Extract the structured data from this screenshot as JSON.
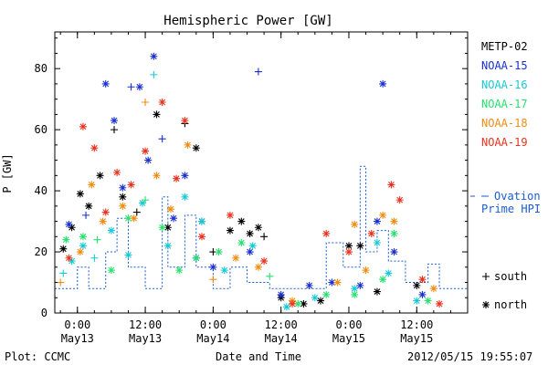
{
  "chart_data": {
    "type": "scatter",
    "title": "Hemispheric Power [GW]",
    "xlabel": "Date and Time",
    "ylabel": "P [GW]",
    "ylim": [
      0,
      92
    ],
    "xlim": [
      "2012-05-12 20:00",
      "2012-05-15 21:00"
    ],
    "yticks": [
      0,
      20,
      40,
      60,
      80
    ],
    "xtick_labels": [
      {
        "t": "2012-05-13 00:00",
        "line1": "0:00",
        "line2": "May13"
      },
      {
        "t": "2012-05-13 12:00",
        "line1": "12:00",
        "line2": "May13"
      },
      {
        "t": "2012-05-14 00:00",
        "line1": "0:00",
        "line2": "May14"
      },
      {
        "t": "2012-05-14 12:00",
        "line1": "12:00",
        "line2": "May14"
      },
      {
        "t": "2012-05-15 00:00",
        "line1": "0:00",
        "line2": "May15"
      },
      {
        "t": "2012-05-15 12:00",
        "line1": "12:00",
        "line2": "May15"
      }
    ],
    "grid": false,
    "legend_position": "right",
    "marker_legend": [
      {
        "symbol": "+",
        "label": "south"
      },
      {
        "symbol": "*",
        "label": "north"
      }
    ],
    "series": [
      {
        "name": "METP-02",
        "color": "#000000",
        "points": [
          {
            "t": "2012-05-12 21:30",
            "y": 21,
            "hemi": "north"
          },
          {
            "t": "2012-05-12 23:00",
            "y": 28,
            "hemi": "north"
          },
          {
            "t": "2012-05-13 00:30",
            "y": 39,
            "hemi": "north"
          },
          {
            "t": "2012-05-13 02:00",
            "y": 35,
            "hemi": "north"
          },
          {
            "t": "2012-05-13 04:00",
            "y": 45,
            "hemi": "north"
          },
          {
            "t": "2012-05-13 06:30",
            "y": 60,
            "hemi": "south"
          },
          {
            "t": "2012-05-13 08:00",
            "y": 38,
            "hemi": "north"
          },
          {
            "t": "2012-05-13 10:30",
            "y": 33,
            "hemi": "south"
          },
          {
            "t": "2012-05-13 14:00",
            "y": 65,
            "hemi": "north"
          },
          {
            "t": "2012-05-13 16:00",
            "y": 28,
            "hemi": "north"
          },
          {
            "t": "2012-05-13 19:00",
            "y": 62,
            "hemi": "south"
          },
          {
            "t": "2012-05-13 21:00",
            "y": 54,
            "hemi": "north"
          },
          {
            "t": "2012-05-13 22:00",
            "y": 30,
            "hemi": "north"
          },
          {
            "t": "2012-05-14 00:00",
            "y": 20,
            "hemi": "south"
          },
          {
            "t": "2012-05-14 03:00",
            "y": 27,
            "hemi": "north"
          },
          {
            "t": "2012-05-14 05:00",
            "y": 30,
            "hemi": "north"
          },
          {
            "t": "2012-05-14 06:30",
            "y": 26,
            "hemi": "north"
          },
          {
            "t": "2012-05-14 08:00",
            "y": 28,
            "hemi": "north"
          },
          {
            "t": "2012-05-14 09:00",
            "y": 25,
            "hemi": "south"
          },
          {
            "t": "2012-05-14 12:00",
            "y": 5,
            "hemi": "north"
          },
          {
            "t": "2012-05-14 16:00",
            "y": 3,
            "hemi": "north"
          },
          {
            "t": "2012-05-14 19:00",
            "y": 4,
            "hemi": "north"
          },
          {
            "t": "2012-05-15 00:00",
            "y": 22,
            "hemi": "north"
          },
          {
            "t": "2012-05-15 02:00",
            "y": 22,
            "hemi": "north"
          },
          {
            "t": "2012-05-15 05:00",
            "y": 7,
            "hemi": "north"
          },
          {
            "t": "2012-05-15 12:00",
            "y": 9,
            "hemi": "north"
          }
        ]
      },
      {
        "name": "NOAA-15",
        "color": "#1a2fcf",
        "points": [
          {
            "t": "2012-05-12 22:30",
            "y": 29,
            "hemi": "north"
          },
          {
            "t": "2012-05-13 01:30",
            "y": 32,
            "hemi": "south"
          },
          {
            "t": "2012-05-13 05:00",
            "y": 75,
            "hemi": "north"
          },
          {
            "t": "2012-05-13 06:30",
            "y": 63,
            "hemi": "north"
          },
          {
            "t": "2012-05-13 08:00",
            "y": 41,
            "hemi": "north"
          },
          {
            "t": "2012-05-13 09:30",
            "y": 74,
            "hemi": "south"
          },
          {
            "t": "2012-05-13 11:00",
            "y": 74,
            "hemi": "north"
          },
          {
            "t": "2012-05-13 12:30",
            "y": 50,
            "hemi": "north"
          },
          {
            "t": "2012-05-13 13:30",
            "y": 84,
            "hemi": "north"
          },
          {
            "t": "2012-05-13 15:00",
            "y": 57,
            "hemi": "south"
          },
          {
            "t": "2012-05-13 17:00",
            "y": 31,
            "hemi": "north"
          },
          {
            "t": "2012-05-13 19:00",
            "y": 45,
            "hemi": "north"
          },
          {
            "t": "2012-05-13 21:00",
            "y": 18,
            "hemi": "north"
          },
          {
            "t": "2012-05-14 00:00",
            "y": 15,
            "hemi": "north"
          },
          {
            "t": "2012-05-14 06:30",
            "y": 20,
            "hemi": "north"
          },
          {
            "t": "2012-05-14 08:00",
            "y": 79,
            "hemi": "south"
          },
          {
            "t": "2012-05-14 12:00",
            "y": 6,
            "hemi": "north"
          },
          {
            "t": "2012-05-14 17:00",
            "y": 9,
            "hemi": "north"
          },
          {
            "t": "2012-05-14 21:00",
            "y": 10,
            "hemi": "north"
          },
          {
            "t": "2012-05-15 02:00",
            "y": 9,
            "hemi": "north"
          },
          {
            "t": "2012-05-15 05:00",
            "y": 30,
            "hemi": "north"
          },
          {
            "t": "2012-05-15 06:00",
            "y": 75,
            "hemi": "north"
          },
          {
            "t": "2012-05-15 08:00",
            "y": 20,
            "hemi": "north"
          },
          {
            "t": "2012-05-15 13:00",
            "y": 6,
            "hemi": "north"
          }
        ]
      },
      {
        "name": "NOAA-16",
        "color": "#17c9d6",
        "points": [
          {
            "t": "2012-05-12 21:30",
            "y": 13,
            "hemi": "south"
          },
          {
            "t": "2012-05-12 23:00",
            "y": 17,
            "hemi": "north"
          },
          {
            "t": "2012-05-13 01:00",
            "y": 22,
            "hemi": "north"
          },
          {
            "t": "2012-05-13 03:00",
            "y": 18,
            "hemi": "south"
          },
          {
            "t": "2012-05-13 06:00",
            "y": 27,
            "hemi": "north"
          },
          {
            "t": "2012-05-13 09:00",
            "y": 19,
            "hemi": "north"
          },
          {
            "t": "2012-05-13 11:30",
            "y": 36,
            "hemi": "north"
          },
          {
            "t": "2012-05-13 13:30",
            "y": 78,
            "hemi": "south"
          },
          {
            "t": "2012-05-13 16:00",
            "y": 22,
            "hemi": "north"
          },
          {
            "t": "2012-05-13 19:00",
            "y": 38,
            "hemi": "north"
          },
          {
            "t": "2012-05-13 22:00",
            "y": 30,
            "hemi": "north"
          },
          {
            "t": "2012-05-14 02:00",
            "y": 14,
            "hemi": "north"
          },
          {
            "t": "2012-05-14 07:00",
            "y": 22,
            "hemi": "north"
          },
          {
            "t": "2012-05-14 13:00",
            "y": 2,
            "hemi": "north"
          },
          {
            "t": "2012-05-14 18:00",
            "y": 5,
            "hemi": "north"
          },
          {
            "t": "2012-05-15 01:00",
            "y": 8,
            "hemi": "north"
          },
          {
            "t": "2012-05-15 05:00",
            "y": 23,
            "hemi": "north"
          },
          {
            "t": "2012-05-15 07:00",
            "y": 13,
            "hemi": "north"
          },
          {
            "t": "2012-05-15 12:00",
            "y": 4,
            "hemi": "north"
          }
        ]
      },
      {
        "name": "NOAA-17",
        "color": "#27e06e",
        "points": [
          {
            "t": "2012-05-12 22:00",
            "y": 24,
            "hemi": "north"
          },
          {
            "t": "2012-05-13 01:00",
            "y": 25,
            "hemi": "north"
          },
          {
            "t": "2012-05-13 03:30",
            "y": 24,
            "hemi": "south"
          },
          {
            "t": "2012-05-13 06:00",
            "y": 14,
            "hemi": "north"
          },
          {
            "t": "2012-05-13 09:00",
            "y": 31,
            "hemi": "north"
          },
          {
            "t": "2012-05-13 12:00",
            "y": 37,
            "hemi": "south"
          },
          {
            "t": "2012-05-13 15:00",
            "y": 28,
            "hemi": "north"
          },
          {
            "t": "2012-05-13 18:00",
            "y": 14,
            "hemi": "north"
          },
          {
            "t": "2012-05-13 21:00",
            "y": 18,
            "hemi": "north"
          },
          {
            "t": "2012-05-14 01:00",
            "y": 20,
            "hemi": "north"
          },
          {
            "t": "2012-05-14 05:00",
            "y": 23,
            "hemi": "north"
          },
          {
            "t": "2012-05-14 10:00",
            "y": 12,
            "hemi": "south"
          },
          {
            "t": "2012-05-14 15:00",
            "y": 3,
            "hemi": "north"
          },
          {
            "t": "2012-05-14 20:00",
            "y": 6,
            "hemi": "north"
          },
          {
            "t": "2012-05-15 01:00",
            "y": 6,
            "hemi": "north"
          },
          {
            "t": "2012-05-15 06:00",
            "y": 11,
            "hemi": "north"
          },
          {
            "t": "2012-05-15 08:00",
            "y": 26,
            "hemi": "north"
          },
          {
            "t": "2012-05-15 14:00",
            "y": 4,
            "hemi": "north"
          }
        ]
      },
      {
        "name": "NOAA-18",
        "color": "#f08c12",
        "points": [
          {
            "t": "2012-05-12 21:00",
            "y": 10,
            "hemi": "south"
          },
          {
            "t": "2012-05-13 00:30",
            "y": 20,
            "hemi": "north"
          },
          {
            "t": "2012-05-13 02:30",
            "y": 42,
            "hemi": "north"
          },
          {
            "t": "2012-05-13 04:30",
            "y": 30,
            "hemi": "north"
          },
          {
            "t": "2012-05-13 08:00",
            "y": 35,
            "hemi": "north"
          },
          {
            "t": "2012-05-13 10:00",
            "y": 31,
            "hemi": "north"
          },
          {
            "t": "2012-05-13 12:00",
            "y": 69,
            "hemi": "south"
          },
          {
            "t": "2012-05-13 14:00",
            "y": 45,
            "hemi": "north"
          },
          {
            "t": "2012-05-13 16:30",
            "y": 34,
            "hemi": "north"
          },
          {
            "t": "2012-05-13 19:30",
            "y": 55,
            "hemi": "north"
          },
          {
            "t": "2012-05-14 00:00",
            "y": 11,
            "hemi": "south"
          },
          {
            "t": "2012-05-14 04:00",
            "y": 18,
            "hemi": "north"
          },
          {
            "t": "2012-05-14 08:00",
            "y": 15,
            "hemi": "north"
          },
          {
            "t": "2012-05-14 14:00",
            "y": 4,
            "hemi": "north"
          },
          {
            "t": "2012-05-14 22:00",
            "y": 10,
            "hemi": "north"
          },
          {
            "t": "2012-05-15 01:00",
            "y": 29,
            "hemi": "north"
          },
          {
            "t": "2012-05-15 03:00",
            "y": 14,
            "hemi": "north"
          },
          {
            "t": "2012-05-15 06:00",
            "y": 32,
            "hemi": "north"
          },
          {
            "t": "2012-05-15 08:00",
            "y": 30,
            "hemi": "north"
          },
          {
            "t": "2012-05-15 15:00",
            "y": 8,
            "hemi": "north"
          }
        ]
      },
      {
        "name": "NOAA-19",
        "color": "#e8321e",
        "points": [
          {
            "t": "2012-05-12 22:30",
            "y": 18,
            "hemi": "north"
          },
          {
            "t": "2012-05-13 01:00",
            "y": 61,
            "hemi": "north"
          },
          {
            "t": "2012-05-13 03:00",
            "y": 54,
            "hemi": "north"
          },
          {
            "t": "2012-05-13 05:00",
            "y": 33,
            "hemi": "north"
          },
          {
            "t": "2012-05-13 07:00",
            "y": 46,
            "hemi": "north"
          },
          {
            "t": "2012-05-13 09:30",
            "y": 42,
            "hemi": "north"
          },
          {
            "t": "2012-05-13 12:00",
            "y": 53,
            "hemi": "north"
          },
          {
            "t": "2012-05-13 15:00",
            "y": 69,
            "hemi": "north"
          },
          {
            "t": "2012-05-13 17:30",
            "y": 44,
            "hemi": "north"
          },
          {
            "t": "2012-05-13 19:00",
            "y": 63,
            "hemi": "north"
          },
          {
            "t": "2012-05-13 22:00",
            "y": 25,
            "hemi": "north"
          },
          {
            "t": "2012-05-14 03:00",
            "y": 32,
            "hemi": "north"
          },
          {
            "t": "2012-05-14 09:00",
            "y": 17,
            "hemi": "north"
          },
          {
            "t": "2012-05-14 14:00",
            "y": 3,
            "hemi": "north"
          },
          {
            "t": "2012-05-14 20:00",
            "y": 26,
            "hemi": "north"
          },
          {
            "t": "2012-05-15 00:00",
            "y": 20,
            "hemi": "north"
          },
          {
            "t": "2012-05-15 04:00",
            "y": 26,
            "hemi": "north"
          },
          {
            "t": "2012-05-15 07:30",
            "y": 42,
            "hemi": "north"
          },
          {
            "t": "2012-05-15 09:00",
            "y": 37,
            "hemi": "north"
          },
          {
            "t": "2012-05-15 13:00",
            "y": 11,
            "hemi": "north"
          },
          {
            "t": "2012-05-15 16:00",
            "y": 3,
            "hemi": "north"
          }
        ]
      }
    ],
    "ovation": {
      "name": "Ovation Prime HPI",
      "color": "#1a5ccf",
      "style": "dashed-step",
      "steps": [
        {
          "t": "2012-05-12 20:00",
          "y": 8
        },
        {
          "t": "2012-05-13 00:00",
          "y": 15
        },
        {
          "t": "2012-05-13 02:00",
          "y": 8
        },
        {
          "t": "2012-05-13 05:00",
          "y": 20
        },
        {
          "t": "2012-05-13 07:00",
          "y": 31
        },
        {
          "t": "2012-05-13 09:00",
          "y": 15
        },
        {
          "t": "2012-05-13 12:00",
          "y": 8
        },
        {
          "t": "2012-05-13 15:00",
          "y": 38
        },
        {
          "t": "2012-05-13 16:00",
          "y": 15
        },
        {
          "t": "2012-05-13 19:00",
          "y": 32
        },
        {
          "t": "2012-05-13 21:00",
          "y": 15
        },
        {
          "t": "2012-05-14 00:00",
          "y": 8
        },
        {
          "t": "2012-05-14 03:00",
          "y": 15
        },
        {
          "t": "2012-05-14 06:00",
          "y": 10
        },
        {
          "t": "2012-05-14 10:00",
          "y": 8
        },
        {
          "t": "2012-05-14 20:00",
          "y": 23
        },
        {
          "t": "2012-05-14 23:00",
          "y": 15
        },
        {
          "t": "2012-05-15 02:00",
          "y": 48
        },
        {
          "t": "2012-05-15 03:00",
          "y": 20
        },
        {
          "t": "2012-05-15 05:00",
          "y": 27
        },
        {
          "t": "2012-05-15 07:00",
          "y": 17
        },
        {
          "t": "2012-05-15 10:00",
          "y": 10
        },
        {
          "t": "2012-05-15 14:00",
          "y": 16
        },
        {
          "t": "2012-05-15 16:00",
          "y": 8
        },
        {
          "t": "2012-05-15 21:00",
          "y": 8
        }
      ]
    }
  },
  "footer": {
    "left": "Plot: CCMC",
    "right": "2012/05/15 19:55:07"
  }
}
